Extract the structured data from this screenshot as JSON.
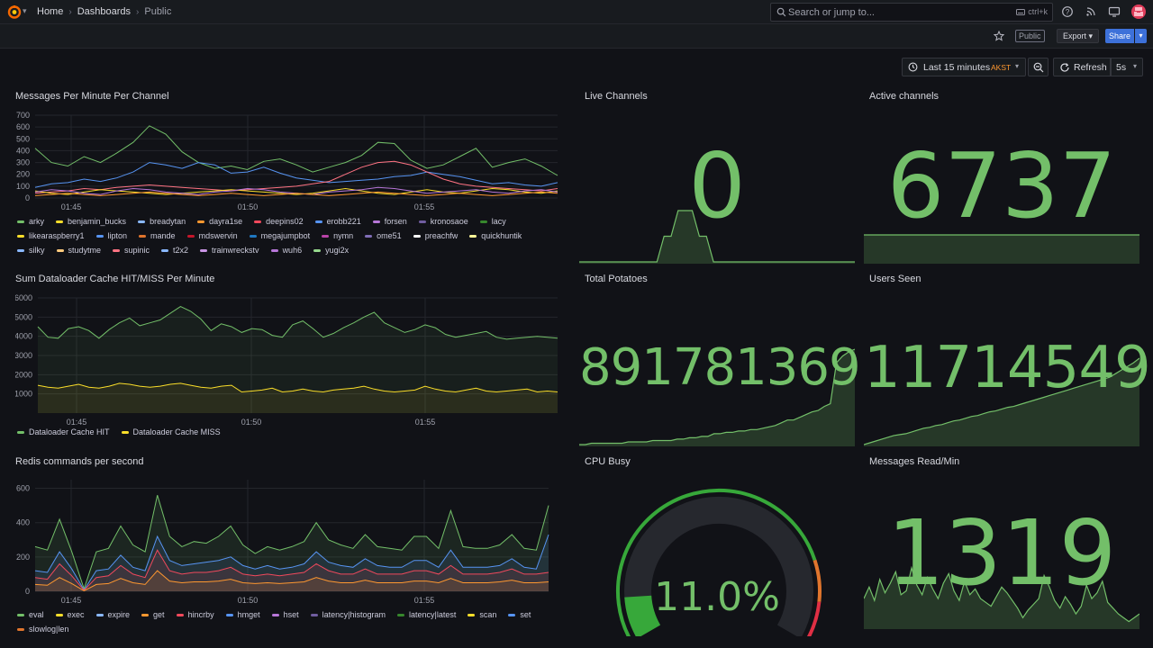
{
  "nav": {
    "breadcrumbs": [
      "Home",
      "Dashboards",
      "Public"
    ],
    "search_placeholder": "Search or jump to...",
    "search_shortcut": "ctrl+k"
  },
  "toolbar": {
    "public_badge": "Public",
    "export_label": "Export",
    "share_label": "Share",
    "time_range": "Last 15 minutes",
    "timezone": "AKST",
    "refresh_label": "Refresh",
    "refresh_interval": "5s"
  },
  "colors": {
    "green": "#73bf69",
    "yellow": "#fade2a",
    "red": "#f2495c",
    "blue": "#5794f2",
    "orange": "#ff9830",
    "purple": "#b877d9"
  },
  "panels": {
    "messages": {
      "title": "Messages Per Minute Per Channel",
      "legend": [
        {
          "name": "arky",
          "color": "#73bf69"
        },
        {
          "name": "benjamin_bucks",
          "color": "#fade2a"
        },
        {
          "name": "breadytan",
          "color": "#8ab8ff"
        },
        {
          "name": "dayra1se",
          "color": "#ff9830"
        },
        {
          "name": "deepins02",
          "color": "#f2495c"
        },
        {
          "name": "erobb221",
          "color": "#5794f2"
        },
        {
          "name": "forsen",
          "color": "#b877d9"
        },
        {
          "name": "kronosaoe",
          "color": "#705da0"
        },
        {
          "name": "lacy",
          "color": "#37872d"
        },
        {
          "name": "likearaspberry1",
          "color": "#fade2a"
        },
        {
          "name": "lipton",
          "color": "#5794f2"
        },
        {
          "name": "mande",
          "color": "#e0752d"
        },
        {
          "name": "mdswervin",
          "color": "#c4162a"
        },
        {
          "name": "megajumpbot",
          "color": "#1f78c1"
        },
        {
          "name": "nymn",
          "color": "#ba43a9"
        },
        {
          "name": "ome51",
          "color": "#806eb7"
        },
        {
          "name": "preachfw",
          "color": "#ffffff"
        },
        {
          "name": "quickhuntik",
          "color": "#fff899"
        },
        {
          "name": "silky",
          "color": "#8ab8ff"
        },
        {
          "name": "studytme",
          "color": "#ffcb7d"
        },
        {
          "name": "supinic",
          "color": "#ff7383"
        },
        {
          "name": "t2x2",
          "color": "#8ab8ff"
        },
        {
          "name": "trainwreckstv",
          "color": "#ca95e5"
        },
        {
          "name": "wuh6",
          "color": "#b877d9"
        },
        {
          "name": "yugi2x",
          "color": "#96d98d"
        }
      ]
    },
    "dataloader": {
      "title": "Sum Dataloader Cache HIT/MISS Per Minute",
      "legend": [
        {
          "name": "Dataloader Cache HIT",
          "color": "#73bf69"
        },
        {
          "name": "Dataloader Cache MISS",
          "color": "#fade2a"
        }
      ]
    },
    "redis": {
      "title": "Redis commands per second",
      "legend": [
        {
          "name": "eval",
          "color": "#73bf69"
        },
        {
          "name": "exec",
          "color": "#fade2a"
        },
        {
          "name": "expire",
          "color": "#8ab8ff"
        },
        {
          "name": "get",
          "color": "#ff9830"
        },
        {
          "name": "hincrby",
          "color": "#f2495c"
        },
        {
          "name": "hmget",
          "color": "#5794f2"
        },
        {
          "name": "hset",
          "color": "#b877d9"
        },
        {
          "name": "latency|histogram",
          "color": "#705da0"
        },
        {
          "name": "latency|latest",
          "color": "#37872d"
        },
        {
          "name": "scan",
          "color": "#fade2a"
        },
        {
          "name": "set",
          "color": "#5794f2"
        },
        {
          "name": "slowlog|len",
          "color": "#e0752d"
        }
      ]
    },
    "live_channels": {
      "title": "Live Channels",
      "value": "0"
    },
    "active_channels": {
      "title": "Active channels",
      "value": "6737"
    },
    "total_potatoes": {
      "title": "Total Potatoes",
      "value": "891781369"
    },
    "users_seen": {
      "title": "Users Seen",
      "value": "11714549"
    },
    "cpu_busy": {
      "title": "CPU Busy",
      "value": "11.0%",
      "fraction": 0.11
    },
    "messages_read": {
      "title": "Messages Read/Min",
      "value": "1319"
    }
  },
  "chart_data": [
    {
      "type": "line",
      "title": "Messages Per Minute Per Channel",
      "x_ticks": [
        "01:45",
        "01:50",
        "01:55"
      ],
      "y_ticks": [
        0,
        100,
        200,
        300,
        400,
        500,
        600,
        700
      ],
      "ylim": [
        0,
        700
      ],
      "series": [
        {
          "name": "arky",
          "color": "#73bf69",
          "values": [
            420,
            300,
            270,
            350,
            300,
            380,
            470,
            610,
            540,
            390,
            300,
            250,
            270,
            240,
            310,
            330,
            280,
            220,
            260,
            300,
            360,
            470,
            460,
            320,
            250,
            280,
            350,
            420,
            260,
            300,
            330,
            270,
            190
          ]
        },
        {
          "name": "lipton",
          "color": "#5794f2",
          "values": [
            90,
            120,
            130,
            160,
            140,
            170,
            220,
            300,
            280,
            250,
            300,
            280,
            210,
            220,
            260,
            210,
            170,
            150,
            130,
            140,
            150,
            160,
            180,
            190,
            220,
            200,
            180,
            150,
            120,
            130,
            110,
            100,
            130
          ]
        },
        {
          "name": "supinic",
          "color": "#ff7383",
          "values": [
            40,
            50,
            60,
            80,
            70,
            90,
            100,
            110,
            100,
            90,
            80,
            70,
            60,
            70,
            80,
            90,
            100,
            120,
            140,
            200,
            260,
            300,
            310,
            280,
            220,
            160,
            120,
            100,
            90,
            80,
            70,
            60,
            80
          ]
        },
        {
          "name": "benjamin_bucks",
          "color": "#fade2a",
          "values": [
            60,
            40,
            30,
            50,
            70,
            60,
            50,
            40,
            30,
            40,
            50,
            60,
            70,
            60,
            50,
            40,
            30,
            40,
            60,
            80,
            60,
            40,
            30,
            50,
            70,
            50,
            40,
            60,
            80,
            70,
            50,
            40,
            60
          ]
        },
        {
          "name": "forsen",
          "color": "#b877d9",
          "values": [
            50,
            70,
            60,
            40,
            30,
            60,
            80,
            70,
            50,
            40,
            30,
            50,
            60,
            80,
            70,
            50,
            40,
            30,
            50,
            60,
            70,
            90,
            80,
            60,
            40,
            50,
            60,
            70,
            50,
            40,
            60,
            70,
            50
          ]
        },
        {
          "name": "dayra1se",
          "color": "#ff9830",
          "values": [
            20,
            30,
            40,
            30,
            20,
            30,
            40,
            50,
            40,
            30,
            20,
            30,
            40,
            30,
            20,
            30,
            40,
            30,
            20,
            30,
            40,
            50,
            40,
            30,
            20,
            30,
            40,
            30,
            20,
            30,
            40,
            50,
            40
          ]
        }
      ]
    },
    {
      "type": "area",
      "title": "Sum Dataloader Cache HIT/MISS Per Minute",
      "x_ticks": [
        "01:45",
        "01:50",
        "01:55"
      ],
      "y_ticks": [
        1000,
        2000,
        3000,
        4000,
        5000,
        6000
      ],
      "ylim": [
        0,
        6000
      ],
      "series": [
        {
          "name": "Dataloader Cache HIT",
          "color": "#73bf69",
          "values": [
            4500,
            3950,
            3900,
            4400,
            4500,
            4300,
            3900,
            4350,
            4700,
            4950,
            4550,
            4700,
            4850,
            5200,
            5550,
            5300,
            4900,
            4300,
            4650,
            4500,
            4200,
            4400,
            4350,
            4050,
            3950,
            4600,
            4800,
            4400,
            3950,
            4150,
            4450,
            4700,
            5000,
            5250,
            4700,
            4450,
            4200,
            4350,
            4600,
            4450,
            4100,
            3950,
            4050,
            4150,
            4250,
            3950,
            3850,
            3900,
            3950,
            4000,
            3950,
            3900
          ]
        },
        {
          "name": "Dataloader Cache MISS",
          "color": "#fade2a",
          "values": [
            1450,
            1350,
            1300,
            1400,
            1500,
            1350,
            1300,
            1400,
            1550,
            1500,
            1400,
            1350,
            1400,
            1500,
            1550,
            1450,
            1350,
            1300,
            1400,
            1450,
            1100,
            1150,
            1200,
            1300,
            1100,
            1150,
            1250,
            1150,
            1100,
            1200,
            1250,
            1300,
            1400,
            1250,
            1150,
            1100,
            1150,
            1200,
            1400,
            1250,
            1150,
            1100,
            1200,
            1300,
            1150,
            1100,
            1150,
            1200,
            1250,
            1100,
            1150,
            1100
          ]
        }
      ]
    },
    {
      "type": "area",
      "title": "Redis commands per second",
      "x_ticks": [
        "01:45",
        "01:50",
        "01:55"
      ],
      "y_ticks": [
        0,
        200,
        400,
        600
      ],
      "ylim": [
        0,
        650
      ],
      "series": [
        {
          "name": "eval",
          "color": "#73bf69",
          "values": [
            260,
            240,
            420,
            230,
            15,
            230,
            250,
            380,
            270,
            230,
            560,
            320,
            260,
            290,
            280,
            320,
            380,
            270,
            220,
            260,
            240,
            260,
            290,
            400,
            300,
            270,
            250,
            330,
            260,
            250,
            240,
            320,
            320,
            250,
            470,
            260,
            250,
            250,
            270,
            330,
            250,
            240,
            500
          ]
        },
        {
          "name": "hmget",
          "color": "#5794f2",
          "values": [
            120,
            110,
            230,
            130,
            8,
            120,
            130,
            210,
            140,
            120,
            320,
            180,
            150,
            160,
            170,
            180,
            200,
            150,
            130,
            150,
            130,
            140,
            160,
            230,
            170,
            150,
            140,
            190,
            150,
            140,
            140,
            180,
            180,
            140,
            240,
            140,
            140,
            140,
            150,
            190,
            140,
            130,
            330
          ]
        },
        {
          "name": "hincrby",
          "color": "#f2495c",
          "values": [
            80,
            70,
            160,
            90,
            5,
            80,
            90,
            150,
            100,
            80,
            240,
            120,
            100,
            110,
            110,
            120,
            140,
            100,
            90,
            100,
            90,
            100,
            110,
            160,
            120,
            100,
            100,
            130,
            100,
            100,
            100,
            120,
            120,
            100,
            150,
            100,
            100,
            100,
            110,
            130,
            100,
            100,
            110
          ]
        },
        {
          "name": "get",
          "color": "#ff9830",
          "values": [
            40,
            35,
            80,
            45,
            3,
            40,
            45,
            75,
            50,
            40,
            120,
            60,
            50,
            55,
            55,
            60,
            70,
            50,
            45,
            50,
            45,
            50,
            55,
            80,
            60,
            50,
            50,
            65,
            50,
            50,
            50,
            60,
            60,
            50,
            75,
            50,
            50,
            50,
            55,
            65,
            50,
            50,
            55
          ]
        }
      ]
    },
    {
      "type": "area",
      "title": "Live Channels",
      "series": [
        {
          "name": "",
          "values": [
            0,
            0,
            0,
            0,
            0,
            0,
            0,
            0,
            0,
            0,
            0,
            0,
            1,
            1,
            2,
            2,
            2,
            1,
            1,
            0,
            0,
            0,
            0,
            0,
            0,
            0,
            0,
            0,
            0,
            0,
            0,
            0,
            0,
            0,
            0,
            0,
            0,
            0,
            0,
            0
          ]
        }
      ]
    },
    {
      "type": "area",
      "title": "Active channels",
      "series": [
        {
          "name": "",
          "values": [
            6737,
            6737,
            6737,
            6737,
            6737,
            6737,
            6737,
            6737,
            6737,
            6737,
            6737,
            6737,
            6737,
            6737,
            6737,
            6737,
            6737,
            6737,
            6737,
            6737
          ]
        }
      ]
    },
    {
      "type": "area",
      "title": "Total Potatoes",
      "series": [
        {
          "name": "",
          "values": [
            0,
            0,
            1,
            1,
            1,
            1,
            1,
            1,
            2,
            2,
            2,
            2,
            3,
            3,
            3,
            3,
            4,
            4,
            5,
            5,
            6,
            6,
            8,
            8,
            9,
            9,
            10,
            10,
            11,
            11,
            12,
            13,
            14,
            16,
            18,
            18,
            20,
            22,
            24,
            25,
            28,
            30,
            60,
            65,
            68,
            70
          ]
        }
      ]
    },
    {
      "type": "area",
      "title": "Users Seen",
      "series": [
        {
          "name": "",
          "values": [
            0,
            2,
            4,
            6,
            8,
            10,
            11,
            12,
            14,
            16,
            18,
            19,
            21,
            22,
            24,
            26,
            27,
            29,
            31,
            32,
            34,
            36,
            37,
            39,
            41,
            42,
            44,
            46,
            48,
            50,
            52,
            54,
            56,
            58,
            60,
            62,
            64,
            66,
            68,
            70,
            72,
            74,
            78,
            82,
            86,
            90,
            95
          ]
        }
      ]
    },
    {
      "type": "area",
      "title": "Messages Read/Min",
      "series": [
        {
          "name": "",
          "values": [
            30,
            42,
            28,
            50,
            36,
            46,
            58,
            34,
            38,
            62,
            44,
            34,
            52,
            40,
            30,
            46,
            56,
            38,
            28,
            48,
            34,
            40,
            30,
            26,
            22,
            32,
            42,
            36,
            28,
            20,
            10,
            18,
            24,
            30,
            54,
            42,
            28,
            20,
            32,
            24,
            14,
            22,
            44,
            30,
            36,
            48,
            26,
            20,
            14,
            10,
            6,
            10,
            14
          ]
        }
      ]
    }
  ]
}
